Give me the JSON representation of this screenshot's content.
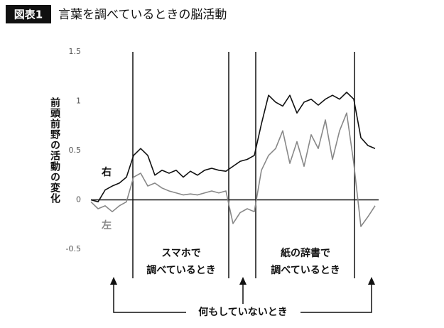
{
  "chart_data": {
    "type": "line",
    "figure_label": "図表1",
    "title": "言葉を調べているときの脳活動",
    "y_label": "前頭前野の活動の変化",
    "ylim": [
      -0.5,
      1.5
    ],
    "yticks": [
      1.5,
      1,
      0.5,
      0,
      -0.5
    ],
    "series": [
      {
        "name": "右",
        "color": "#111111",
        "values": [
          0,
          -0.02,
          0.1,
          0.14,
          0.17,
          0.23,
          0.45,
          0.52,
          0.45,
          0.25,
          0.3,
          0.27,
          0.3,
          0.23,
          0.29,
          0.25,
          0.3,
          0.32,
          0.3,
          0.29,
          0.34,
          0.39,
          0.41,
          0.45,
          0.77,
          1.06,
          0.99,
          0.95,
          1.06,
          0.88,
          0.99,
          1.02,
          0.96,
          1.02,
          1.06,
          1.02,
          1.09,
          1.02,
          0.63,
          0.55,
          0.52
        ]
      },
      {
        "name": "左",
        "color": "#888888",
        "values": [
          -0.02,
          -0.09,
          -0.06,
          -0.12,
          -0.06,
          -0.02,
          0.23,
          0.27,
          0.14,
          0.17,
          0.12,
          0.09,
          0.07,
          0.05,
          0.06,
          0.05,
          0.07,
          0.09,
          0.07,
          0.09,
          -0.24,
          -0.13,
          -0.09,
          -0.12,
          0.3,
          0.45,
          0.52,
          0.7,
          0.37,
          0.59,
          0.34,
          0.66,
          0.52,
          0.81,
          0.41,
          0.7,
          0.88,
          0.37,
          -0.27,
          -0.17,
          -0.06
        ]
      }
    ],
    "annotations": {
      "smartphone": [
        "スマホで",
        "調べているとき"
      ],
      "dictionary": [
        "紙の辞書で",
        "調べているとき"
      ],
      "idle": "何もしていないとき"
    }
  }
}
